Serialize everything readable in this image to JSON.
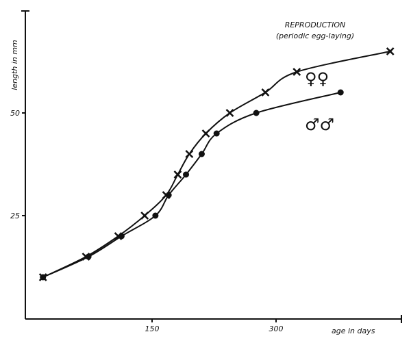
{
  "chart_data": {
    "type": "line",
    "title": "",
    "xlabel": "age in days",
    "ylabel": "length in mm",
    "xlim": [
      0,
      450
    ],
    "ylim": [
      0,
      75
    ],
    "xticks": [
      "150",
      "300"
    ],
    "yticks": [
      "25",
      "50"
    ],
    "grid": false,
    "annotation": {
      "line1": "REPRODUCTION",
      "line2": "(periodic egg-laying)"
    },
    "series": [
      {
        "name": "♀♀",
        "marker": "cross",
        "x": [
          18,
          70,
          109,
          141,
          167,
          181,
          195,
          215,
          244,
          287,
          325,
          438
        ],
        "y": [
          10,
          15,
          20,
          25,
          30,
          35,
          40,
          45,
          50,
          55,
          60,
          65
        ]
      },
      {
        "name": "♂♂",
        "marker": "dot",
        "x": [
          18,
          73,
          113,
          154,
          170,
          191,
          210,
          228,
          276,
          378
        ],
        "y": [
          10,
          15,
          20,
          25,
          30,
          35,
          40,
          45,
          50,
          55
        ]
      }
    ]
  }
}
